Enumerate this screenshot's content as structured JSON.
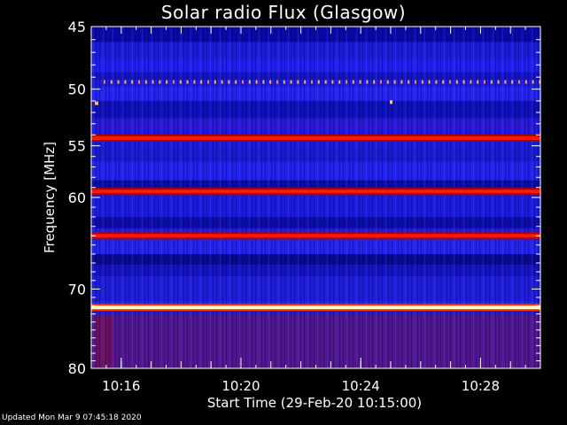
{
  "chart_data": {
    "type": "heatmap",
    "title": "Solar radio Flux (Glasgow)",
    "ylabel": "Frequency [MHz]",
    "xlabel": "Start Time (29-Feb-20 10:15:00)",
    "footer": "Updated Mon Mar  9 07:45:18 2020",
    "x_range": [
      "10:15:00",
      "10:30:00"
    ],
    "y_range": [
      45,
      80
    ],
    "y_ticks": [
      "45",
      "50",
      "55",
      "60",
      "70",
      "80"
    ],
    "x_ticks": [
      "10:16",
      "10:20",
      "10:24",
      "10:28"
    ],
    "y_axis_scale": "log",
    "colormap": [
      "#000000",
      "#0000cc",
      "#3333ff",
      "#cc0000",
      "#ff3300",
      "#ffff99",
      "#ffffff"
    ],
    "bright_bands_mhz": [
      {
        "freq": 49.4,
        "intensity": "intermittent-orange-dots"
      },
      {
        "freq": 54.3,
        "intensity": "red"
      },
      {
        "freq": 59.4,
        "intensity": "red"
      },
      {
        "freq": 64.0,
        "intensity": "red"
      },
      {
        "freq": 72.2,
        "intensity": "white-yellow"
      }
    ]
  }
}
